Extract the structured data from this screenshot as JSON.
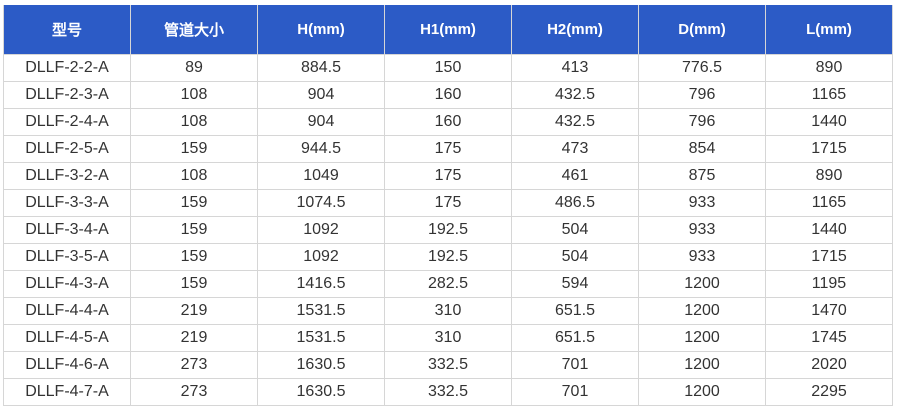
{
  "colors": {
    "header_bg": "#2c5bc6",
    "header_text": "#ffffff",
    "cell_text": "#333333",
    "border": "#d6d6d6"
  },
  "table": {
    "headers": [
      "型号",
      "管道大小",
      "H(mm)",
      "H1(mm)",
      "H2(mm)",
      "D(mm)",
      "L(mm)"
    ],
    "rows": [
      [
        "DLLF-2-2-A",
        "89",
        "884.5",
        "150",
        "413",
        "776.5",
        "890"
      ],
      [
        "DLLF-2-3-A",
        "108",
        "904",
        "160",
        "432.5",
        "796",
        "1165"
      ],
      [
        "DLLF-2-4-A",
        "108",
        "904",
        "160",
        "432.5",
        "796",
        "1440"
      ],
      [
        "DLLF-2-5-A",
        "159",
        "944.5",
        "175",
        "473",
        "854",
        "1715"
      ],
      [
        "DLLF-3-2-A",
        "108",
        "1049",
        "175",
        "461",
        "875",
        "890"
      ],
      [
        "DLLF-3-3-A",
        "159",
        "1074.5",
        "175",
        "486.5",
        "933",
        "1165"
      ],
      [
        "DLLF-3-4-A",
        "159",
        "1092",
        "192.5",
        "504",
        "933",
        "1440"
      ],
      [
        "DLLF-3-5-A",
        "159",
        "1092",
        "192.5",
        "504",
        "933",
        "1715"
      ],
      [
        "DLLF-4-3-A",
        "159",
        "1416.5",
        "282.5",
        "594",
        "1200",
        "1195"
      ],
      [
        "DLLF-4-4-A",
        "219",
        "1531.5",
        "310",
        "651.5",
        "1200",
        "1470"
      ],
      [
        "DLLF-4-5-A",
        "219",
        "1531.5",
        "310",
        "651.5",
        "1200",
        "1745"
      ],
      [
        "DLLF-4-6-A",
        "273",
        "1630.5",
        "332.5",
        "701",
        "1200",
        "2020"
      ],
      [
        "DLLF-4-7-A",
        "273",
        "1630.5",
        "332.5",
        "701",
        "1200",
        "2295"
      ]
    ]
  }
}
